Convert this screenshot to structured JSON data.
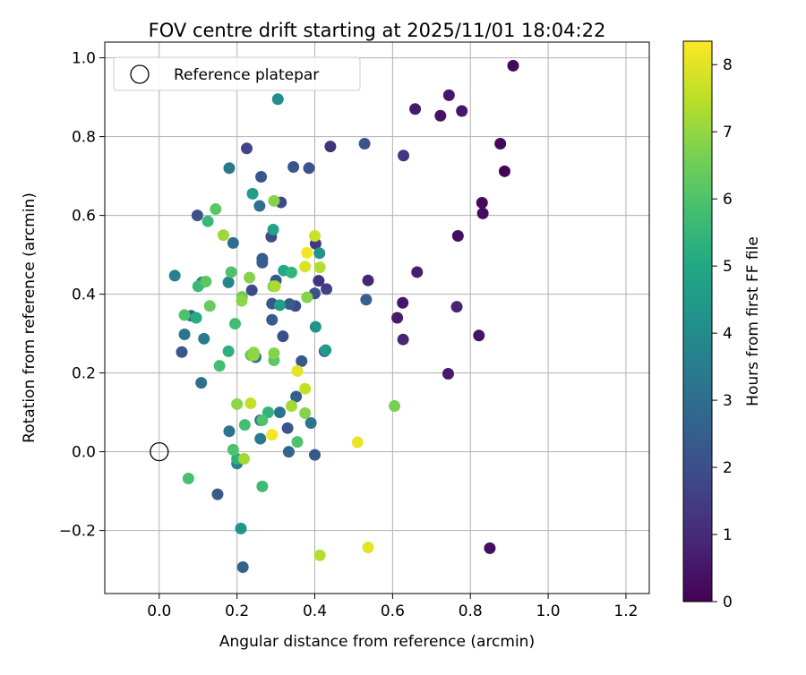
{
  "chart_data": {
    "type": "scatter",
    "title": "FOV centre drift starting at 2025/11/01 18:04:22",
    "xlabel": "Angular distance from reference (arcmin)",
    "ylabel": "Rotation from reference (arcmin)",
    "xlim": [
      -0.14,
      1.26
    ],
    "ylim": [
      -0.36,
      1.04
    ],
    "xticks": [
      0.0,
      0.2,
      0.4,
      0.6,
      0.8,
      1.0,
      1.2
    ],
    "xtick_labels": [
      "0.0",
      "0.2",
      "0.4",
      "0.6",
      "0.8",
      "1.0",
      "1.2"
    ],
    "yticks": [
      -0.2,
      0.0,
      0.2,
      0.4,
      0.6,
      0.8,
      1.0
    ],
    "ytick_labels": [
      "−0.2",
      "0.0",
      "0.2",
      "0.4",
      "0.6",
      "0.8",
      "1.0"
    ],
    "grid": true,
    "legend": {
      "location": "top-left",
      "entries": [
        {
          "label": "Reference platepar",
          "marker": "open-circle"
        }
      ]
    },
    "reference_point": {
      "x": 0.0,
      "y": 0.0,
      "label": "Reference platepar"
    },
    "colorbar": {
      "label": "Hours from first FF file",
      "colormap": "viridis",
      "range": [
        0,
        8.35
      ],
      "ticks": [
        0,
        1,
        2,
        3,
        4,
        5,
        6,
        7,
        8
      ],
      "tick_labels": [
        "0",
        "1",
        "2",
        "3",
        "4",
        "5",
        "6",
        "7",
        "8"
      ]
    },
    "points": [
      {
        "x": 0.91,
        "y": 0.98,
        "h": 0.2
      },
      {
        "x": 0.745,
        "y": 0.905,
        "h": 0.5
      },
      {
        "x": 0.658,
        "y": 0.87,
        "h": 0.6
      },
      {
        "x": 0.723,
        "y": 0.853,
        "h": 0.4
      },
      {
        "x": 0.778,
        "y": 0.865,
        "h": 0.5
      },
      {
        "x": 0.877,
        "y": 0.782,
        "h": 0.2
      },
      {
        "x": 0.888,
        "y": 0.712,
        "h": 0.1
      },
      {
        "x": 0.83,
        "y": 0.632,
        "h": 0.2
      },
      {
        "x": 0.832,
        "y": 0.605,
        "h": 0.3
      },
      {
        "x": 0.768,
        "y": 0.548,
        "h": 0.3
      },
      {
        "x": 0.663,
        "y": 0.456,
        "h": 0.7
      },
      {
        "x": 0.537,
        "y": 0.435,
        "h": 0.9
      },
      {
        "x": 0.626,
        "y": 0.378,
        "h": 0.5
      },
      {
        "x": 0.612,
        "y": 0.34,
        "h": 0.6
      },
      {
        "x": 0.765,
        "y": 0.368,
        "h": 0.8
      },
      {
        "x": 0.627,
        "y": 0.285,
        "h": 0.9
      },
      {
        "x": 0.822,
        "y": 0.295,
        "h": 0.4
      },
      {
        "x": 0.743,
        "y": 0.198,
        "h": 0.6
      },
      {
        "x": 0.85,
        "y": -0.245,
        "h": 0.3
      },
      {
        "x": 0.628,
        "y": 0.752,
        "h": 1.3
      },
      {
        "x": 0.44,
        "y": 0.775,
        "h": 1.2
      },
      {
        "x": 0.225,
        "y": 0.77,
        "h": 1.7
      },
      {
        "x": 0.528,
        "y": 0.782,
        "h": 2.2
      },
      {
        "x": 0.41,
        "y": 0.434,
        "h": 1.2
      },
      {
        "x": 0.43,
        "y": 0.413,
        "h": 1.6
      },
      {
        "x": 0.402,
        "y": 0.528,
        "h": 1.4
      },
      {
        "x": 0.345,
        "y": 0.723,
        "h": 2.2
      },
      {
        "x": 0.385,
        "y": 0.72,
        "h": 2.1
      },
      {
        "x": 0.313,
        "y": 0.633,
        "h": 1.8
      },
      {
        "x": 0.262,
        "y": 0.698,
        "h": 2.3
      },
      {
        "x": 0.098,
        "y": 0.6,
        "h": 2.1
      },
      {
        "x": 0.288,
        "y": 0.546,
        "h": 1.9
      },
      {
        "x": 0.265,
        "y": 0.49,
        "h": 2.4
      },
      {
        "x": 0.265,
        "y": 0.48,
        "h": 2.5
      },
      {
        "x": 0.238,
        "y": 0.41,
        "h": 1.8
      },
      {
        "x": 0.3,
        "y": 0.435,
        "h": 2.3
      },
      {
        "x": 0.29,
        "y": 0.376,
        "h": 2.2
      },
      {
        "x": 0.35,
        "y": 0.37,
        "h": 1.9
      },
      {
        "x": 0.335,
        "y": 0.375,
        "h": 2.4
      },
      {
        "x": 0.4,
        "y": 0.402,
        "h": 2.1
      },
      {
        "x": 0.29,
        "y": 0.335,
        "h": 2.4
      },
      {
        "x": 0.318,
        "y": 0.293,
        "h": 2.0
      },
      {
        "x": 0.366,
        "y": 0.23,
        "h": 2.3
      },
      {
        "x": 0.425,
        "y": 0.255,
        "h": 2.6
      },
      {
        "x": 0.532,
        "y": 0.386,
        "h": 2.6
      },
      {
        "x": 0.082,
        "y": 0.345,
        "h": 2.7
      },
      {
        "x": 0.058,
        "y": 0.253,
        "h": 2.3
      },
      {
        "x": 0.352,
        "y": 0.14,
        "h": 2.5
      },
      {
        "x": 0.33,
        "y": 0.06,
        "h": 2.2
      },
      {
        "x": 0.4,
        "y": -0.008,
        "h": 2.3
      },
      {
        "x": 0.333,
        "y": 0.0,
        "h": 2.7
      },
      {
        "x": 0.15,
        "y": -0.108,
        "h": 2.4
      },
      {
        "x": 0.215,
        "y": -0.293,
        "h": 2.6
      },
      {
        "x": 0.18,
        "y": 0.72,
        "h": 3.3
      },
      {
        "x": 0.258,
        "y": 0.624,
        "h": 3.1
      },
      {
        "x": 0.19,
        "y": 0.53,
        "h": 3.0
      },
      {
        "x": 0.305,
        "y": 0.895,
        "h": 4.0
      },
      {
        "x": 0.11,
        "y": 0.43,
        "h": 3.5
      },
      {
        "x": 0.178,
        "y": 0.43,
        "h": 3.8
      },
      {
        "x": 0.04,
        "y": 0.447,
        "h": 3.6
      },
      {
        "x": 0.065,
        "y": 0.298,
        "h": 3.2
      },
      {
        "x": 0.115,
        "y": 0.287,
        "h": 3.4
      },
      {
        "x": 0.108,
        "y": 0.175,
        "h": 3.1
      },
      {
        "x": 0.248,
        "y": 0.24,
        "h": 3.3
      },
      {
        "x": 0.31,
        "y": 0.1,
        "h": 3.2
      },
      {
        "x": 0.26,
        "y": 0.08,
        "h": 3.0
      },
      {
        "x": 0.39,
        "y": 0.073,
        "h": 3.2
      },
      {
        "x": 0.26,
        "y": 0.033,
        "h": 3.4
      },
      {
        "x": 0.18,
        "y": 0.052,
        "h": 3.2
      },
      {
        "x": 0.2,
        "y": -0.03,
        "h": 3.6
      },
      {
        "x": 0.21,
        "y": -0.195,
        "h": 4.3
      },
      {
        "x": 0.24,
        "y": 0.655,
        "h": 4.6
      },
      {
        "x": 0.293,
        "y": 0.564,
        "h": 4.8
      },
      {
        "x": 0.412,
        "y": 0.504,
        "h": 4.3
      },
      {
        "x": 0.32,
        "y": 0.46,
        "h": 5.0
      },
      {
        "x": 0.34,
        "y": 0.455,
        "h": 5.4
      },
      {
        "x": 0.31,
        "y": 0.372,
        "h": 4.6
      },
      {
        "x": 0.402,
        "y": 0.317,
        "h": 4.2
      },
      {
        "x": 0.428,
        "y": 0.258,
        "h": 4.5
      },
      {
        "x": 0.178,
        "y": 0.255,
        "h": 5.3
      },
      {
        "x": 0.28,
        "y": 0.1,
        "h": 5.4
      },
      {
        "x": 0.2,
        "y": -0.018,
        "h": 5.3
      },
      {
        "x": 0.095,
        "y": 0.34,
        "h": 5.1
      },
      {
        "x": 0.155,
        "y": 0.218,
        "h": 5.8
      },
      {
        "x": 0.125,
        "y": 0.585,
        "h": 5.6
      },
      {
        "x": 0.145,
        "y": 0.616,
        "h": 6.2
      },
      {
        "x": 0.185,
        "y": 0.456,
        "h": 6.0
      },
      {
        "x": 0.1,
        "y": 0.42,
        "h": 5.6
      },
      {
        "x": 0.12,
        "y": 0.432,
        "h": 6.2
      },
      {
        "x": 0.065,
        "y": 0.347,
        "h": 6.0
      },
      {
        "x": 0.13,
        "y": 0.37,
        "h": 6.4
      },
      {
        "x": 0.195,
        "y": 0.325,
        "h": 5.8
      },
      {
        "x": 0.22,
        "y": 0.068,
        "h": 5.8
      },
      {
        "x": 0.265,
        "y": 0.08,
        "h": 6.0
      },
      {
        "x": 0.355,
        "y": 0.025,
        "h": 6.0
      },
      {
        "x": 0.19,
        "y": 0.005,
        "h": 6.0
      },
      {
        "x": 0.075,
        "y": -0.068,
        "h": 5.9
      },
      {
        "x": 0.265,
        "y": -0.088,
        "h": 5.7
      },
      {
        "x": 0.295,
        "y": 0.232,
        "h": 6.2
      },
      {
        "x": 0.235,
        "y": 0.245,
        "h": 6.4
      },
      {
        "x": 0.605,
        "y": 0.116,
        "h": 6.6
      },
      {
        "x": 0.295,
        "y": 0.637,
        "h": 6.8
      },
      {
        "x": 0.165,
        "y": 0.55,
        "h": 7.1
      },
      {
        "x": 0.232,
        "y": 0.442,
        "h": 6.8
      },
      {
        "x": 0.213,
        "y": 0.393,
        "h": 6.5
      },
      {
        "x": 0.212,
        "y": 0.383,
        "h": 6.9
      },
      {
        "x": 0.293,
        "y": 0.42,
        "h": 6.7
      },
      {
        "x": 0.298,
        "y": 0.42,
        "h": 7.3
      },
      {
        "x": 0.38,
        "y": 0.392,
        "h": 6.8
      },
      {
        "x": 0.413,
        "y": 0.468,
        "h": 7.4
      },
      {
        "x": 0.243,
        "y": 0.245,
        "h": 7.1
      },
      {
        "x": 0.243,
        "y": 0.252,
        "h": 6.9
      },
      {
        "x": 0.295,
        "y": 0.25,
        "h": 6.8
      },
      {
        "x": 0.2,
        "y": 0.121,
        "h": 6.9
      },
      {
        "x": 0.235,
        "y": 0.123,
        "h": 7.6
      },
      {
        "x": 0.34,
        "y": 0.116,
        "h": 7.2
      },
      {
        "x": 0.375,
        "y": 0.098,
        "h": 6.8
      },
      {
        "x": 0.218,
        "y": -0.018,
        "h": 7.2
      },
      {
        "x": 0.413,
        "y": -0.263,
        "h": 7.4
      },
      {
        "x": 0.4,
        "y": 0.548,
        "h": 7.7
      },
      {
        "x": 0.375,
        "y": 0.47,
        "h": 7.9
      },
      {
        "x": 0.38,
        "y": 0.505,
        "h": 8.2
      },
      {
        "x": 0.355,
        "y": 0.205,
        "h": 8.0
      },
      {
        "x": 0.375,
        "y": 0.16,
        "h": 7.6
      },
      {
        "x": 0.29,
        "y": 0.043,
        "h": 8.2
      },
      {
        "x": 0.51,
        "y": 0.024,
        "h": 8.1
      },
      {
        "x": 0.537,
        "y": -0.243,
        "h": 8.0
      }
    ]
  }
}
